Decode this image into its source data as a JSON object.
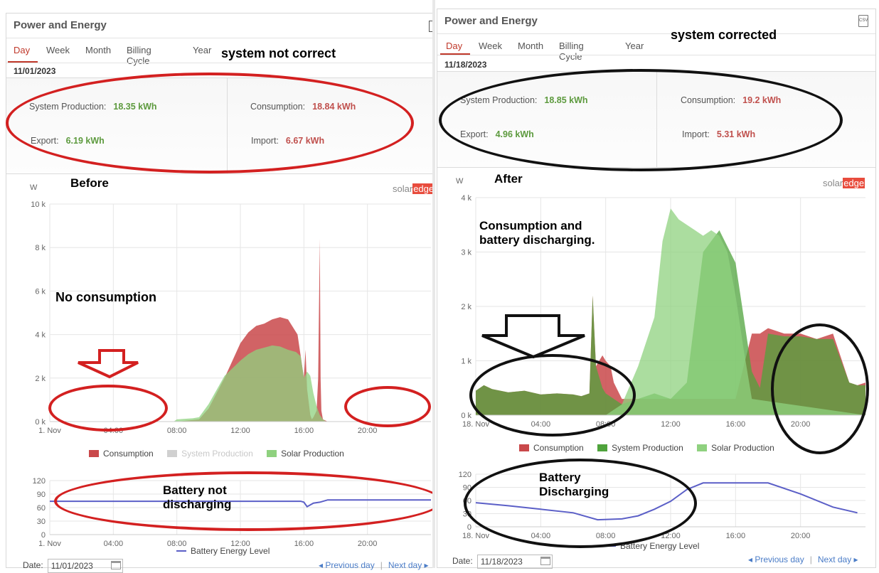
{
  "panel_title": "Power and Energy",
  "tabs": [
    "Day",
    "Week",
    "Month",
    "Billing Cycle",
    "Year"
  ],
  "colors": {
    "consumption": "#c9484a",
    "system_production": "#4fa33c",
    "solar_production": "#8fd17f",
    "battery_line": "#5b5fc7",
    "accent": "#c0392b"
  },
  "left": {
    "status_note": "system not correct",
    "date": "11/01/2023",
    "summary": {
      "production_label": "System Production:",
      "production_value": "18.35 kWh",
      "consumption_label": "Consumption:",
      "consumption_value": "18.84 kWh",
      "export_label": "Export:",
      "export_value": "6.19 kWh",
      "import_label": "Import:",
      "import_value": "6.67 kWh"
    },
    "chart_note": "Before",
    "annot_no_consumption": "No consumption",
    "annot_battery": "Battery not\ndischarging",
    "brand_a": "solar",
    "brand_b": "edge",
    "unit_label": "W",
    "legend": [
      "Consumption",
      "System Production",
      "Solar Production"
    ],
    "battery_legend": "Battery Energy Level",
    "footer": {
      "date_label": "Date:",
      "date_value": "11/01/2023",
      "prev": "◂ Previous day",
      "next": "Next day ▸"
    }
  },
  "right": {
    "status_note": "system corrected",
    "date": "11/18/2023",
    "summary": {
      "production_label": "System Production:",
      "production_value": "18.85 kWh",
      "consumption_label": "Consumption:",
      "consumption_value": "19.2 kWh",
      "export_label": "Export:",
      "export_value": "4.96 kWh",
      "import_label": "Import:",
      "import_value": "5.31 kWh"
    },
    "chart_note": "After",
    "annot_consumption": "Consumption and\nbattery discharging.",
    "annot_battery": "Battery\nDischarging",
    "brand_a": "solar",
    "brand_b": "edge",
    "unit_label": "W",
    "legend": [
      "Consumption",
      "System Production",
      "Solar Production"
    ],
    "battery_legend": "Battery Energy Level",
    "footer": {
      "date_label": "Date:",
      "date_value": "11/18/2023",
      "prev": "◂ Previous day",
      "next": "Next day ▸"
    }
  },
  "chart_data": [
    {
      "type": "area",
      "x_ticks": [
        "1. Nov",
        "04:00",
        "08:00",
        "12:00",
        "16:00",
        "20:00"
      ],
      "y_ticks": [
        "0 k",
        "2 k",
        "4 k",
        "6 k",
        "8 k",
        "10 k"
      ],
      "ylim": [
        0,
        10000
      ],
      "xlim": [
        0,
        24
      ],
      "series": [
        {
          "name": "Consumption",
          "x": [
            0,
            8,
            9.4,
            10,
            11,
            12,
            12.5,
            13,
            13.5,
            14,
            14.5,
            15,
            15.6,
            15.8,
            16,
            16.1,
            16.2,
            16.4,
            16.5,
            16.6,
            16.8,
            16.9,
            17,
            17.05,
            17.1,
            17.2,
            17.5,
            24
          ],
          "y": [
            0,
            0,
            100,
            600,
            2000,
            3600,
            4100,
            4400,
            4500,
            4700,
            4800,
            4700,
            4000,
            3000,
            2000,
            3300,
            1500,
            300,
            100,
            200,
            500,
            2000,
            8400,
            2000,
            500,
            100,
            0,
            0
          ]
        },
        {
          "name": "System Production",
          "x": [
            0,
            24
          ],
          "y": [
            0,
            0
          ]
        },
        {
          "name": "Solar Production",
          "x": [
            0,
            7.8,
            8,
            9,
            9.4,
            10,
            11,
            12,
            12.5,
            13,
            13.5,
            14,
            14.5,
            15,
            15.5,
            15.8,
            16,
            16.2,
            16.4,
            16.6,
            16.8,
            17,
            17.2,
            17.4,
            24
          ],
          "y": [
            0,
            0,
            100,
            150,
            200,
            800,
            2100,
            2800,
            3100,
            3300,
            3400,
            3500,
            3450,
            3300,
            3200,
            3000,
            2000,
            2300,
            2100,
            1300,
            700,
            300,
            100,
            0,
            0
          ]
        }
      ]
    },
    {
      "type": "line",
      "x_ticks": [
        "1. Nov",
        "04:00",
        "08:00",
        "12:00",
        "16:00",
        "20:00"
      ],
      "y_ticks": [
        "0",
        "30",
        "60",
        "90",
        "120"
      ],
      "ylim": [
        0,
        120
      ],
      "xlim": [
        0,
        24
      ],
      "series": [
        {
          "name": "Battery Energy Level",
          "x": [
            0,
            15.8,
            16,
            16.2,
            16.6,
            17,
            17.5,
            24
          ],
          "y": [
            74,
            74,
            72,
            62,
            70,
            72,
            77,
            77
          ]
        }
      ]
    },
    {
      "type": "area",
      "x_ticks": [
        "18. Nov",
        "04:00",
        "08:00",
        "12:00",
        "16:00",
        "20:00"
      ],
      "y_ticks": [
        "0 k",
        "1 k",
        "2 k",
        "3 k",
        "4 k"
      ],
      "ylim": [
        0,
        4000
      ],
      "xlim": [
        0,
        24
      ],
      "series": [
        {
          "name": "Consumption",
          "x": [
            0,
            0.5,
            1,
            2,
            3,
            4,
            5,
            6,
            6.5,
            7,
            7.2,
            7.4,
            7.8,
            8,
            8.3,
            8.5,
            9,
            9.5,
            10,
            11,
            12,
            13,
            14,
            15,
            16,
            17,
            17.5,
            18,
            19,
            20,
            21,
            22,
            23,
            23.5,
            24
          ],
          "y": [
            450,
            550,
            480,
            420,
            450,
            380,
            400,
            380,
            350,
            400,
            2200,
            900,
            1100,
            1000,
            900,
            600,
            300,
            300,
            300,
            300,
            300,
            300,
            300,
            300,
            300,
            1500,
            1500,
            1600,
            1500,
            1500,
            1400,
            1500,
            600,
            550,
            600
          ]
        },
        {
          "name": "System Production",
          "x": [
            0,
            0.5,
            1,
            2,
            3,
            4,
            5,
            6,
            6.5,
            7,
            7.2,
            7.4,
            7.8,
            8,
            8.5,
            9,
            10,
            11,
            12,
            13,
            14,
            15,
            16,
            16.5,
            17,
            17.5,
            18,
            19,
            20,
            21,
            22,
            23,
            23.5,
            24
          ],
          "y": [
            450,
            550,
            480,
            420,
            450,
            380,
            400,
            380,
            350,
            400,
            2200,
            900,
            500,
            400,
            300,
            200,
            300,
            400,
            300,
            600,
            3000,
            3400,
            2800,
            1800,
            800,
            500,
            1500,
            1450,
            1450,
            1400,
            1400,
            600,
            550,
            550
          ]
        },
        {
          "name": "Solar Production",
          "x": [
            0,
            8,
            9,
            10,
            11,
            11.5,
            12,
            12.5,
            13,
            13.5,
            14,
            14.5,
            15,
            15.5,
            16,
            16.5,
            17,
            24
          ],
          "y": [
            0,
            0,
            200,
            900,
            1800,
            3200,
            3800,
            3600,
            3500,
            3400,
            3300,
            3400,
            3300,
            3000,
            2200,
            1200,
            300,
            0
          ]
        }
      ]
    },
    {
      "type": "line",
      "x_ticks": [
        "18. Nov",
        "04:00",
        "08:00",
        "12:00",
        "16:00",
        "20:00"
      ],
      "y_ticks": [
        "0",
        "30",
        "60",
        "90",
        "120"
      ],
      "ylim": [
        0,
        120
      ],
      "xlim": [
        0,
        24
      ],
      "series": [
        {
          "name": "Battery Energy Level",
          "x": [
            0,
            2,
            4,
            6,
            7.5,
            9,
            10,
            11,
            12,
            13,
            14,
            16,
            18,
            20,
            22,
            23.5
          ],
          "y": [
            55,
            48,
            40,
            32,
            16,
            18,
            25,
            40,
            58,
            85,
            100,
            100,
            100,
            75,
            45,
            32
          ]
        }
      ]
    }
  ]
}
